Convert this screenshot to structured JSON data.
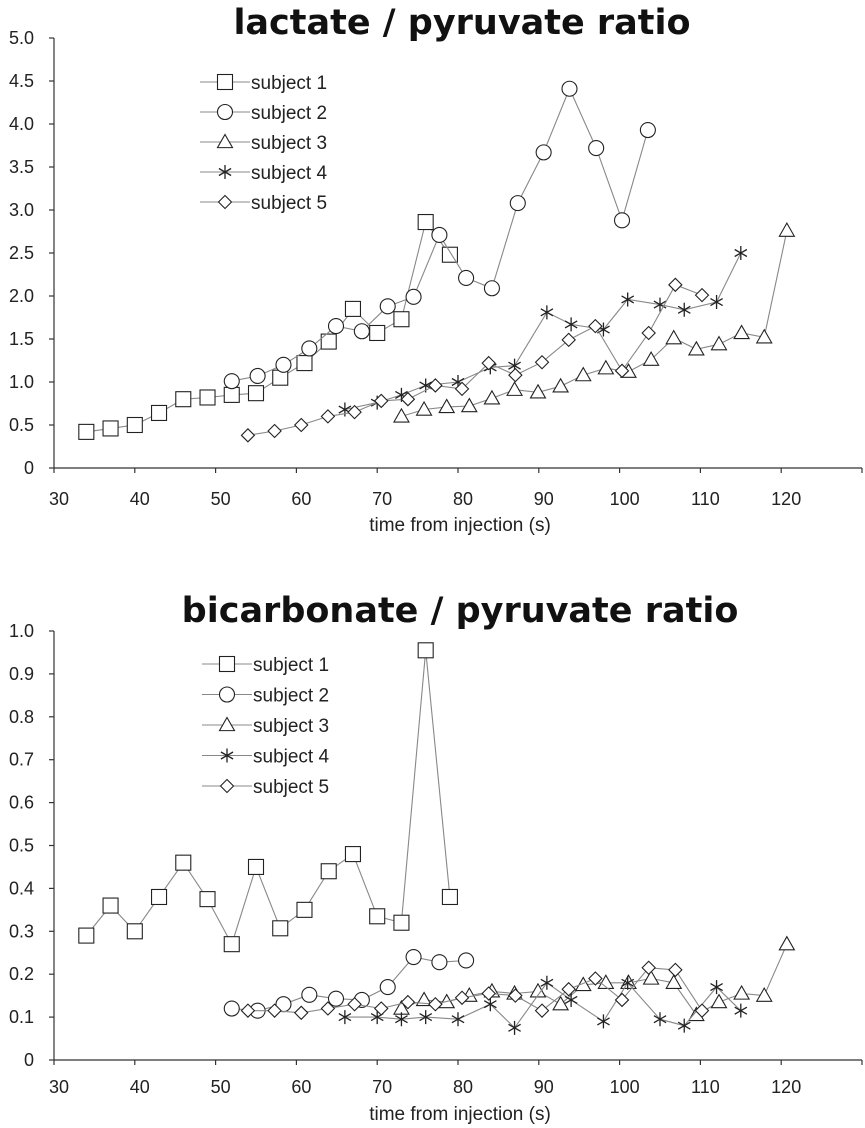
{
  "chart_data": [
    {
      "type": "line",
      "title": "lactate / pyruvate ratio",
      "xlabel": "time from injection (s)",
      "ylabel": "",
      "xlim": [
        30,
        130
      ],
      "ylim": [
        0,
        5.0
      ],
      "xticks": [
        "30",
        "40",
        "50",
        "60",
        "70",
        "80",
        "90",
        "100",
        "110",
        "120"
      ],
      "yticks": [
        "0",
        "0.5",
        "1.0",
        "1.5",
        "2.0",
        "2.5",
        "3.0",
        "3.5",
        "4.0",
        "4.5",
        "5.0"
      ],
      "legend_position": "top-left",
      "series": [
        {
          "name": "subject 1",
          "marker": "square",
          "x": [
            34,
            37,
            40,
            43,
            46,
            49,
            52,
            55,
            58,
            61,
            64,
            67,
            70,
            73,
            76,
            79
          ],
          "y": [
            0.42,
            0.46,
            0.5,
            0.64,
            0.8,
            0.82,
            0.85,
            0.87,
            1.05,
            1.22,
            1.47,
            1.85,
            1.57,
            1.73,
            2.86,
            2.48
          ]
        },
        {
          "name": "subject 2",
          "marker": "circle",
          "x": [
            52,
            55.2,
            58.4,
            61.6,
            64.9,
            68.1,
            71.3,
            74.5,
            77.7,
            81,
            84.2,
            87.4,
            90.6,
            93.8,
            97.1,
            100.3,
            103.5
          ],
          "y": [
            1.01,
            1.07,
            1.2,
            1.39,
            1.65,
            1.59,
            1.88,
            1.99,
            2.71,
            2.21,
            2.09,
            3.08,
            3.67,
            4.41,
            3.72,
            2.88,
            3.93
          ]
        },
        {
          "name": "subject 3",
          "marker": "triangle",
          "x": [
            73,
            75.8,
            78.6,
            81.4,
            84.2,
            87,
            89.9,
            92.7,
            95.5,
            98.3,
            101.1,
            103.9,
            106.7,
            109.5,
            112.3,
            115.1,
            117.9,
            120.7
          ],
          "y": [
            0.6,
            0.68,
            0.71,
            0.72,
            0.81,
            0.91,
            0.88,
            0.95,
            1.08,
            1.16,
            1.12,
            1.26,
            1.51,
            1.38,
            1.44,
            1.57,
            1.52,
            2.76
          ]
        },
        {
          "name": "subject 4",
          "marker": "asterisk",
          "x": [
            66,
            70,
            73,
            76,
            80,
            84,
            87,
            91,
            94,
            98,
            101,
            105,
            108,
            112,
            115
          ],
          "y": [
            0.68,
            0.76,
            0.85,
            0.96,
            1.0,
            1.17,
            1.19,
            1.81,
            1.67,
            1.61,
            1.96,
            1.9,
            1.84,
            1.93,
            2.5
          ]
        },
        {
          "name": "subject 5",
          "marker": "diamond",
          "x": [
            54,
            57.3,
            60.6,
            63.9,
            67.2,
            70.5,
            73.8,
            77.2,
            80.5,
            83.8,
            87.1,
            90.4,
            93.7,
            97,
            100.3,
            103.6,
            106.9,
            110.2
          ],
          "y": [
            0.38,
            0.43,
            0.5,
            0.6,
            0.65,
            0.78,
            0.8,
            0.96,
            0.92,
            1.22,
            1.08,
            1.23,
            1.49,
            1.65,
            1.13,
            1.57,
            2.13,
            2.01
          ]
        }
      ]
    },
    {
      "type": "line",
      "title": "bicarbonate / pyruvate ratio",
      "xlabel": "time from injection (s)",
      "ylabel": "",
      "xlim": [
        30,
        130
      ],
      "ylim": [
        0,
        1.0
      ],
      "xticks": [
        "30",
        "40",
        "50",
        "60",
        "70",
        "80",
        "90",
        "100",
        "110",
        "120"
      ],
      "yticks": [
        "0",
        "0.1",
        "0.2",
        "0.3",
        "0.4",
        "0.5",
        "0.6",
        "0.7",
        "0.8",
        "0.9",
        "1.0"
      ],
      "legend_position": "top-left",
      "series": [
        {
          "name": "subject 1",
          "marker": "square",
          "x": [
            34,
            37,
            40,
            43,
            46,
            49,
            52,
            55,
            58,
            61,
            64,
            67,
            70,
            73,
            76,
            79
          ],
          "y": [
            0.29,
            0.36,
            0.3,
            0.38,
            0.46,
            0.375,
            0.27,
            0.45,
            0.307,
            0.35,
            0.44,
            0.48,
            0.335,
            0.32,
            0.955,
            0.38
          ]
        },
        {
          "name": "subject 2",
          "marker": "circle",
          "x": [
            52,
            55.2,
            58.4,
            61.6,
            64.9,
            68.1,
            71.3,
            74.5,
            77.7,
            81
          ],
          "y": [
            0.12,
            0.115,
            0.13,
            0.152,
            0.143,
            0.14,
            0.17,
            0.24,
            0.228,
            0.232
          ]
        },
        {
          "name": "subject 3",
          "marker": "triangle",
          "x": [
            73,
            75.8,
            78.6,
            81.4,
            84.2,
            87,
            89.9,
            92.7,
            95.5,
            98.3,
            101.1,
            103.9,
            106.7,
            109.5,
            112.3,
            115.1,
            117.9,
            120.7
          ],
          "y": [
            0.12,
            0.14,
            0.135,
            0.15,
            0.16,
            0.155,
            0.16,
            0.13,
            0.175,
            0.18,
            0.18,
            0.19,
            0.18,
            0.105,
            0.135,
            0.155,
            0.15,
            0.27
          ]
        },
        {
          "name": "subject 4",
          "marker": "asterisk",
          "x": [
            66,
            70,
            73,
            76,
            80,
            84,
            87,
            91,
            94,
            98,
            101,
            105,
            108,
            112,
            115
          ],
          "y": [
            0.1,
            0.1,
            0.095,
            0.1,
            0.095,
            0.13,
            0.075,
            0.18,
            0.14,
            0.09,
            0.18,
            0.095,
            0.08,
            0.17,
            0.115
          ]
        },
        {
          "name": "subject 5",
          "marker": "diamond",
          "x": [
            54,
            57.3,
            60.6,
            63.9,
            67.2,
            70.5,
            73.8,
            77.2,
            80.5,
            83.8,
            87.1,
            90.4,
            93.7,
            97,
            100.3,
            103.6,
            106.9,
            110.2
          ],
          "y": [
            0.115,
            0.115,
            0.11,
            0.12,
            0.13,
            0.12,
            0.135,
            0.13,
            0.145,
            0.155,
            0.15,
            0.115,
            0.165,
            0.19,
            0.14,
            0.215,
            0.21,
            0.115
          ]
        }
      ]
    }
  ]
}
